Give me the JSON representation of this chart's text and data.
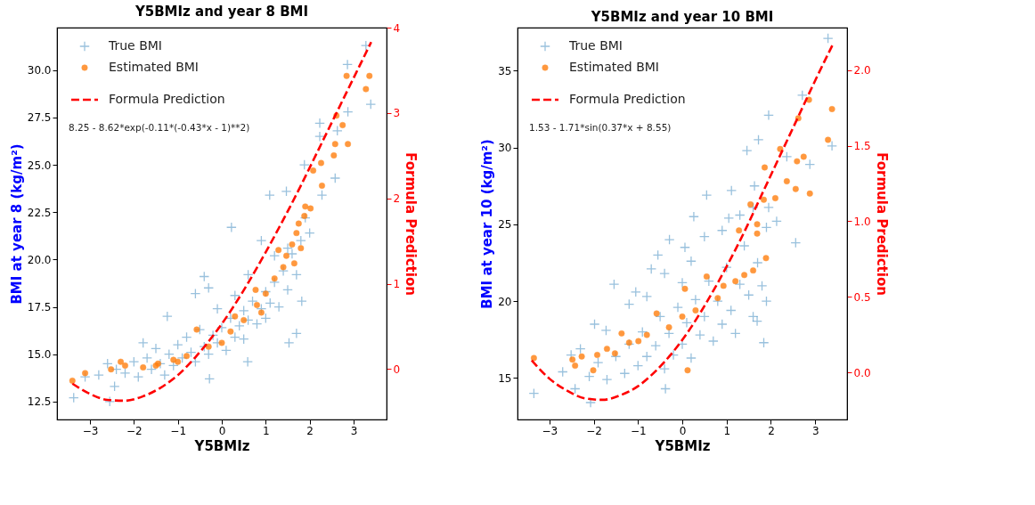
{
  "chart_data": [
    {
      "type": "scatter",
      "title": "Y5BMIz and year 8 BMI",
      "xlabel": "Y5BMIz",
      "ylabel": "BMI at year 8 (kg/m²)",
      "y2label": "Formula Prediction",
      "legend": "top left",
      "annotations": [
        "8.25 - 8.62*exp(-0.11*(-0.43*x - 1)**2)"
      ],
      "xlim": [
        -3.75,
        3.75
      ],
      "xticks": [
        {
          "value": -3,
          "label": "−3"
        },
        {
          "value": -2,
          "label": "−2"
        },
        {
          "value": -1,
          "label": "−1"
        },
        0,
        1,
        2,
        3
      ],
      "ylim": [
        11.55,
        32.25
      ],
      "yticks": [
        12.5,
        {
          "value": 15,
          "label": "15.0"
        },
        17.5,
        {
          "value": 20,
          "label": "20.0"
        },
        22.5,
        {
          "value": 25,
          "label": "25.0"
        },
        27.5,
        {
          "value": 30,
          "label": "30.0"
        }
      ],
      "y2lim": [
        -0.59,
        4.0
      ],
      "y2ticks": [
        0,
        1,
        2,
        3,
        4
      ],
      "series": [
        {
          "name": "True BMI",
          "marker": "cross",
          "color": "#1f77b4",
          "x": [
            3.28,
            2.86,
            3.39,
            2.87,
            2.63,
            2.23,
            2.23,
            1.88,
            2.58,
            2.28,
            1.09,
            1.47,
            0.22,
            -0.4,
            -1.24,
            -1.79,
            -2.55,
            -3.37,
            -3.11,
            -2.44,
            1.53,
            1.7,
            1.82,
            0.59,
            -0.28,
            -2.8,
            -2.6,
            -2.4,
            -2.2,
            -2.0,
            -1.9,
            -1.7,
            -1.6,
            -1.5,
            -1.4,
            -1.3,
            -1.2,
            -1.1,
            -1.0,
            -0.9,
            -0.8,
            -0.7,
            -0.6,
            -0.5,
            -0.4,
            -0.3,
            -0.2,
            -0.1,
            0.0,
            0.1,
            0.2,
            0.3,
            0.4,
            0.5,
            0.5,
            0.6,
            0.7,
            0.8,
            0.9,
            1.0,
            1.0,
            1.1,
            1.2,
            1.3,
            1.4,
            1.5,
            1.6,
            1.7,
            1.8,
            1.9,
            2.0,
            1.5,
            -0.6,
            -0.3,
            0.6,
            1.2,
            0.9,
            -0.1,
            0.3
          ],
          "values": [
            31.3,
            30.3,
            28.2,
            27.8,
            26.8,
            27.2,
            26.5,
            25.0,
            24.3,
            23.4,
            23.4,
            23.6,
            21.7,
            19.1,
            17.0,
            15.6,
            12.5,
            12.7,
            13.8,
            13.3,
            15.6,
            16.1,
            17.8,
            14.6,
            13.7,
            13.9,
            14.5,
            14.2,
            14.0,
            14.6,
            13.8,
            14.8,
            14.2,
            15.3,
            14.5,
            13.9,
            15.0,
            14.4,
            15.5,
            14.8,
            15.9,
            15.1,
            14.6,
            16.3,
            15.4,
            15.0,
            16.0,
            15.6,
            16.4,
            15.2,
            16.9,
            15.9,
            16.5,
            17.3,
            15.8,
            16.8,
            17.8,
            16.6,
            17.4,
            18.3,
            16.9,
            17.7,
            18.8,
            17.5,
            19.4,
            18.4,
            20.3,
            19.2,
            21.0,
            22.2,
            21.4,
            20.6,
            18.2,
            18.5,
            19.2,
            20.2,
            21.0,
            17.4,
            18.1
          ]
        },
        {
          "name": "Estimated BMI",
          "marker": "circle",
          "color": "#ff7f0e",
          "x": [
            -3.4,
            -3.11,
            -2.52,
            -2.2,
            -1.79,
            -1.45,
            -1.1,
            -0.57,
            0.3,
            0.77,
            1.29,
            1.47,
            1.7,
            1.88,
            2.02,
            2.08,
            2.26,
            2.28,
            2.55,
            2.58,
            2.87,
            2.75,
            2.61,
            2.84,
            3.28,
            3.36,
            -1.5,
            -0.8,
            -0.3,
            0.2,
            0.5,
            0.8,
            1.0,
            1.2,
            1.4,
            1.6,
            1.75,
            1.9,
            1.65,
            1.8,
            0.9,
            -2.3,
            -1.0,
            0.0
          ],
          "values": [
            13.6,
            14.0,
            14.2,
            14.4,
            14.3,
            14.5,
            14.7,
            16.3,
            17.0,
            18.4,
            20.5,
            20.2,
            21.4,
            22.3,
            22.7,
            24.7,
            25.1,
            23.9,
            25.5,
            26.1,
            26.1,
            27.1,
            27.6,
            29.7,
            29.0,
            29.7,
            14.4,
            14.9,
            15.4,
            16.2,
            16.8,
            17.6,
            18.2,
            19.0,
            19.6,
            20.8,
            21.9,
            22.8,
            19.8,
            20.6,
            17.2,
            14.6,
            14.6,
            15.6
          ]
        },
        {
          "name": "Formula Prediction",
          "type": "line",
          "axis": "y2",
          "marker": "none",
          "line_style": "dashed",
          "color": "#ff0000",
          "x": [
            -3.4,
            -3.0,
            -2.6,
            -2.2,
            -1.8,
            -1.4,
            -1.0,
            -0.6,
            -0.2,
            0.2,
            0.6,
            1.0,
            1.4,
            1.8,
            2.2,
            2.6,
            3.0,
            3.4
          ],
          "values": [
            -0.17,
            -0.29,
            -0.36,
            -0.37,
            -0.32,
            -0.22,
            -0.07,
            0.14,
            0.39,
            0.68,
            1.01,
            1.37,
            1.75,
            2.15,
            2.57,
            2.99,
            3.41,
            3.83
          ]
        }
      ]
    },
    {
      "type": "scatter",
      "title": "Y5BMIz and year 10 BMI",
      "xlabel": "Y5BMIz",
      "ylabel": "BMI at year 10 (kg/m²)",
      "y2label": "Formula Prediction",
      "legend": "top left",
      "annotations": [
        "1.53 - 1.71*sin(0.37*x + 8.55)"
      ],
      "xlim": [
        -3.72,
        3.72
      ],
      "xticks": [
        {
          "value": -3,
          "label": "−3"
        },
        {
          "value": -2,
          "label": "−2"
        },
        {
          "value": -1,
          "label": "−1"
        },
        0,
        1,
        2,
        3
      ],
      "ylim": [
        12.3,
        37.8
      ],
      "yticks": [
        15,
        20,
        25,
        30,
        35
      ],
      "y2lim": [
        -0.31,
        2.28
      ],
      "y2ticks": [
        {
          "value": 0,
          "label": "0.0"
        },
        0.5,
        {
          "value": 1,
          "label": "1.0"
        },
        1.5,
        {
          "value": 2,
          "label": "2.0"
        }
      ],
      "series": [
        {
          "name": "True BMI",
          "marker": "cross",
          "color": "#1f77b4",
          "x": [
            3.29,
            3.38,
            2.88,
            2.36,
            1.95,
            1.72,
            1.46,
            2.56,
            2.71,
            0.55,
            0.26,
            1.11,
            -1.54,
            -1.98,
            -1.72,
            -2.51,
            -3.35,
            -2.07,
            -2.42,
            1.84,
            1.69,
            -0.29,
            -0.55,
            -1.05,
            -0.7,
            0.06,
            1.95,
            2.13,
            1.63,
            1.05,
            -0.38,
            -2.7,
            -2.3,
            -2.1,
            -1.9,
            -1.7,
            -1.5,
            -1.3,
            -1.2,
            -1.0,
            -0.9,
            -0.8,
            -0.6,
            -0.5,
            -0.4,
            -0.3,
            -0.2,
            -0.1,
            0.0,
            0.1,
            0.2,
            0.3,
            0.4,
            0.5,
            0.6,
            0.7,
            0.8,
            0.9,
            1.0,
            1.1,
            1.2,
            1.3,
            1.4,
            1.5,
            1.6,
            1.7,
            1.8,
            1.9,
            -0.4,
            0.2,
            0.5,
            0.9,
            1.3,
            -1.2,
            -0.8,
            0.0,
            1.6,
            1.9
          ],
          "values": [
            37.1,
            30.1,
            28.9,
            29.4,
            32.1,
            30.5,
            29.8,
            23.8,
            33.4,
            26.9,
            25.5,
            27.2,
            21.1,
            18.5,
            18.1,
            16.5,
            14.0,
            13.4,
            14.3,
            17.3,
            18.7,
            24.0,
            23.0,
            20.6,
            22.1,
            23.5,
            26.1,
            25.2,
            27.5,
            25.4,
            14.3,
            15.4,
            16.9,
            15.1,
            16.0,
            14.9,
            16.4,
            15.3,
            17.2,
            15.8,
            18.0,
            16.4,
            17.1,
            19.0,
            15.6,
            17.9,
            16.5,
            19.6,
            17.2,
            18.6,
            16.3,
            20.1,
            17.8,
            19.0,
            21.3,
            17.4,
            20.0,
            18.5,
            22.2,
            19.4,
            17.9,
            21.1,
            23.6,
            20.4,
            19.0,
            22.5,
            21.0,
            24.8,
            21.8,
            22.6,
            24.2,
            24.6,
            25.6,
            19.8,
            20.3,
            21.2,
            26.1,
            20.0
          ]
        },
        {
          "name": "Estimated BMI",
          "marker": "circle",
          "color": "#ff7f0e",
          "x": [
            -3.35,
            -2.48,
            -2.42,
            -2.27,
            -2.01,
            -1.92,
            -1.37,
            -1.52,
            -0.99,
            -0.58,
            0.06,
            0.55,
            1.28,
            1.54,
            1.69,
            1.69,
            1.84,
            1.86,
            2.1,
            1.89,
            2.21,
            2.36,
            2.56,
            2.59,
            2.74,
            2.88,
            2.86,
            2.62,
            3.38,
            3.29,
            0.12,
            1.4,
            0.93,
            -0.3,
            0.3,
            0.8,
            -1.2,
            -0.8,
            1.2,
            1.6,
            -1.7,
            0.0
          ],
          "values": [
            16.3,
            16.2,
            15.8,
            16.4,
            15.5,
            16.5,
            17.9,
            16.6,
            17.4,
            19.2,
            20.8,
            21.6,
            24.6,
            26.3,
            25.0,
            24.4,
            26.6,
            28.7,
            26.7,
            22.8,
            29.9,
            27.8,
            27.3,
            29.1,
            29.4,
            27.0,
            33.1,
            31.9,
            32.5,
            30.5,
            15.5,
            21.7,
            21.0,
            18.3,
            19.4,
            20.2,
            17.3,
            17.8,
            21.3,
            22.0,
            16.9,
            19.0
          ]
        },
        {
          "name": "Formula Prediction",
          "type": "line",
          "axis": "y2",
          "marker": "none",
          "line_style": "dashed",
          "color": "#ff0000",
          "x": [
            -3.4,
            -3.0,
            -2.6,
            -2.2,
            -1.8,
            -1.4,
            -1.0,
            -0.6,
            -0.2,
            0.2,
            0.6,
            1.0,
            1.4,
            1.8,
            2.2,
            2.6,
            3.0,
            3.4
          ],
          "values": [
            0.08,
            -0.04,
            -0.12,
            -0.17,
            -0.18,
            -0.15,
            -0.09,
            0.01,
            0.14,
            0.3,
            0.49,
            0.7,
            0.93,
            1.18,
            1.43,
            1.68,
            1.93,
            2.17
          ]
        }
      ]
    }
  ]
}
